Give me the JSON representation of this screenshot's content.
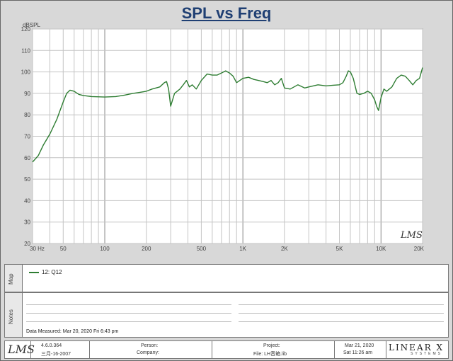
{
  "chart_data": {
    "type": "line",
    "title": "SPL vs Freq",
    "ylabel": "dBSPL",
    "xlabel": "",
    "xscale": "log",
    "xlim": [
      30,
      20000
    ],
    "ylim": [
      20,
      120
    ],
    "yticks": [
      20,
      30,
      40,
      50,
      60,
      70,
      80,
      90,
      100,
      110,
      120
    ],
    "xticks": [
      {
        "value": 30,
        "label": "30  Hz"
      },
      {
        "value": 50,
        "label": "50"
      },
      {
        "value": 100,
        "label": "100"
      },
      {
        "value": 200,
        "label": "200"
      },
      {
        "value": 500,
        "label": "500"
      },
      {
        "value": 1000,
        "label": "1K"
      },
      {
        "value": 2000,
        "label": "2K"
      },
      {
        "value": 5000,
        "label": "5K"
      },
      {
        "value": 10000,
        "label": "10K"
      },
      {
        "value": 20000,
        "label": "20K"
      }
    ],
    "grid": true,
    "series": [
      {
        "name": "12: Q12",
        "color": "#2e7d32",
        "x": [
          30,
          33,
          36,
          40,
          45,
          50,
          53,
          56,
          60,
          65,
          70,
          80,
          100,
          120,
          140,
          160,
          180,
          200,
          220,
          250,
          270,
          280,
          290,
          300,
          320,
          350,
          370,
          390,
          410,
          430,
          460,
          500,
          550,
          600,
          650,
          700,
          750,
          800,
          850,
          900,
          950,
          1000,
          1100,
          1200,
          1300,
          1400,
          1500,
          1600,
          1700,
          1800,
          1900,
          2000,
          2200,
          2500,
          2800,
          3000,
          3500,
          4000,
          4500,
          5000,
          5300,
          5600,
          5800,
          6000,
          6300,
          6700,
          7000,
          7500,
          8000,
          8500,
          9000,
          9300,
          9600,
          10000,
          10500,
          11000,
          12000,
          13000,
          14000,
          15000,
          16000,
          17000,
          18000,
          19000,
          20000
        ],
        "y": [
          58,
          61,
          66,
          71,
          78,
          86,
          90,
          91.5,
          91,
          89.5,
          89,
          88.5,
          88.3,
          88.5,
          89.2,
          90,
          90.5,
          91,
          92,
          93,
          95,
          95.5,
          92,
          84,
          90,
          92,
          94,
          96,
          93,
          94,
          92,
          96,
          99,
          98.5,
          98.5,
          99.5,
          100.5,
          99.5,
          98,
          95,
          96,
          97,
          97.5,
          96.5,
          96,
          95.5,
          95,
          96,
          94,
          95,
          97,
          92.5,
          92,
          94,
          92.5,
          93,
          94,
          93.5,
          93.8,
          94,
          95,
          98,
          100.5,
          100,
          97,
          90,
          89.5,
          90,
          91,
          90,
          87,
          84,
          82,
          88,
          92,
          91,
          93,
          97,
          98.5,
          98,
          96,
          94,
          96,
          97,
          102
        ]
      }
    ]
  },
  "legend": {
    "panel_label": "Map",
    "entry": "12: Q12"
  },
  "notes": {
    "panel_label": "Notes",
    "measured": "Data Measured: Mar 20, 2020  Fri  6:43 pm"
  },
  "plot_logo": "LMS",
  "footer": {
    "logo": "LMS",
    "version": "4.6.0.364",
    "build_date": "三月-16-2007",
    "person_label": "Person:",
    "company_label": "Company:",
    "project_label": "Project:",
    "file_label": "File: LH音箱.lib",
    "date": "Mar 21, 2020",
    "time": "Sat 11:26 am",
    "brand": "LINEAR X",
    "brand_sub": "SYSTEMS"
  }
}
